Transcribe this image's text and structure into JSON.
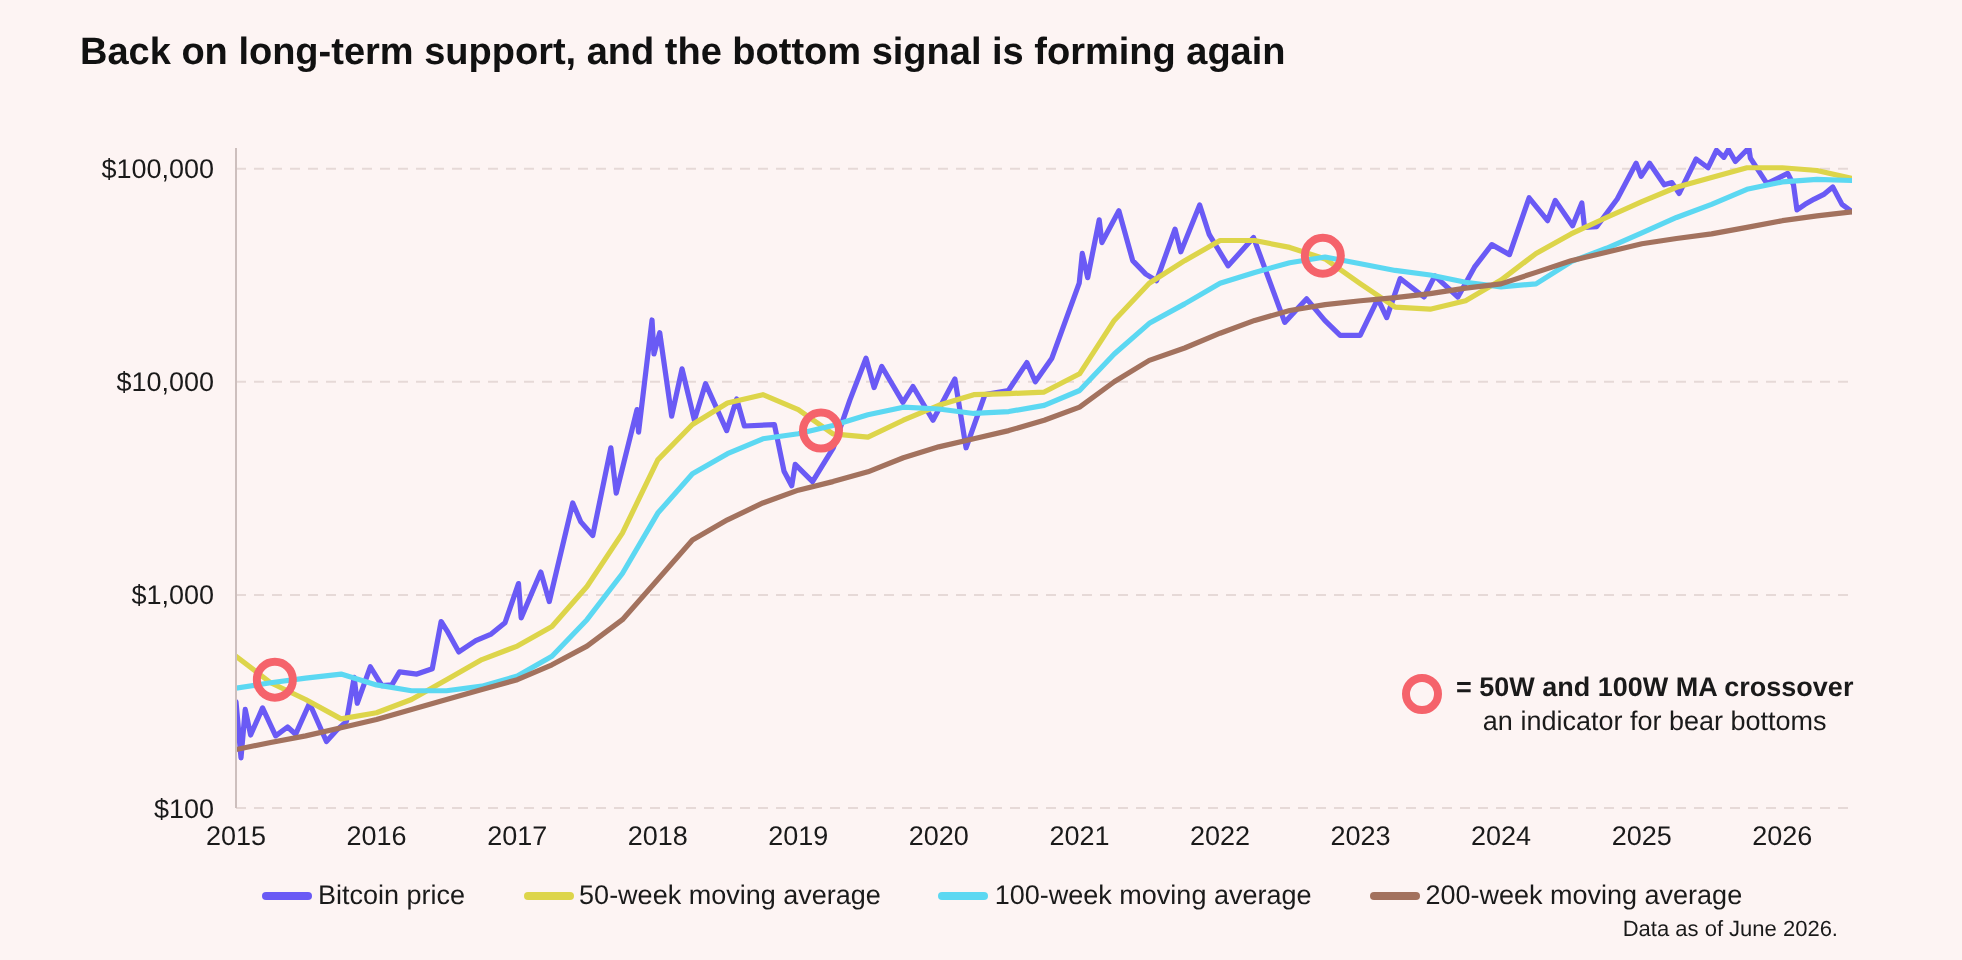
{
  "chart_data": {
    "type": "line",
    "title": "Back on long-term support, and the bottom signal is forming again",
    "annotations": [
      "an indicator for bear bottoms",
      "Data as of June 2026."
    ],
    "x": [
      "2015-01",
      "2015-04",
      "2015-07",
      "2015-10",
      "2016-01",
      "2016-04",
      "2016-07",
      "2016-10",
      "2017-01",
      "2017-04",
      "2017-07",
      "2017-10",
      "2018-01",
      "2018-04",
      "2018-07",
      "2018-10",
      "2019-01",
      "2019-04",
      "2019-07",
      "2019-10",
      "2020-01",
      "2020-04",
      "2020-07",
      "2020-10",
      "2021-01",
      "2021-04",
      "2021-07",
      "2021-10",
      "2022-01",
      "2022-04",
      "2022-07",
      "2022-10",
      "2023-01",
      "2023-04",
      "2023-07",
      "2023-10",
      "2024-01",
      "2024-04",
      "2024-07",
      "2024-10",
      "2025-01",
      "2025-04",
      "2025-07",
      "2025-10",
      "2026-01",
      "2026-04",
      "2026-06-30"
    ],
    "series": [
      {
        "name": "Bitcoin price",
        "color": "#6a5af5",
        "x": [
          "2015-01-01",
          "2015-01-14",
          "2015-01-25",
          "2015-02-08",
          "2015-03-11",
          "2015-04-14",
          "2015-05-15",
          "2015-06-05",
          "2015-07-11",
          "2015-08-24",
          "2015-09-20",
          "2015-10-15",
          "2015-11-04",
          "2015-11-12",
          "2015-12-16",
          "2016-01-15",
          "2016-02-10",
          "2016-03-01",
          "2016-04-15",
          "2016-05-25",
          "2016-06-17",
          "2016-07-02",
          "2016-08-02",
          "2016-09-15",
          "2016-10-25",
          "2016-11-30",
          "2017-01-04",
          "2017-01-11",
          "2017-03-03",
          "2017-03-25",
          "2017-05-25",
          "2017-06-15",
          "2017-07-16",
          "2017-09-01",
          "2017-09-15",
          "2017-11-08",
          "2017-11-12",
          "2017-12-17",
          "2017-12-22",
          "2018-01-06",
          "2018-02-06",
          "2018-03-05",
          "2018-04-06",
          "2018-05-05",
          "2018-06-29",
          "2018-07-25",
          "2018-08-14",
          "2018-10-31",
          "2018-11-25",
          "2018-12-15",
          "2018-12-24",
          "2019-02-07",
          "2019-04-02",
          "2019-05-15",
          "2019-06-26",
          "2019-07-17",
          "2019-08-06",
          "2019-09-30",
          "2019-10-26",
          "2019-12-17",
          "2020-02-12",
          "2020-03-12",
          "2020-04-30",
          "2020-06-30",
          "2020-08-17",
          "2020-09-08",
          "2020-10-21",
          "2020-12-31",
          "2021-01-08",
          "2021-01-22",
          "2021-02-21",
          "2021-02-28",
          "2021-04-13",
          "2021-05-19",
          "2021-06-22",
          "2021-07-20",
          "2021-09-06",
          "2021-09-21",
          "2021-11-09",
          "2021-12-04",
          "2022-01-22",
          "2022-03-29",
          "2022-05-12",
          "2022-06-18",
          "2022-08-14",
          "2022-09-30",
          "2022-11-09",
          "2022-12-31",
          "2023-02-15",
          "2023-03-10",
          "2023-04-14",
          "2023-06-15",
          "2023-07-13",
          "2023-09-11",
          "2023-10-24",
          "2023-12-08",
          "2024-01-23",
          "2024-03-14",
          "2024-05-01",
          "2024-05-21",
          "2024-07-05",
          "2024-07-29",
          "2024-08-05",
          "2024-09-06",
          "2024-10-29",
          "2024-12-17",
          "2024-12-30",
          "2025-01-21",
          "2025-02-28",
          "2025-03-20",
          "2025-04-08",
          "2025-05-22",
          "2025-06-22",
          "2025-07-14",
          "2025-08-02",
          "2025-08-14",
          "2025-09-01",
          "2025-10-06",
          "2025-10-10",
          "2025-11-22",
          "2025-12-20",
          "2026-01-15",
          "2026-01-30",
          "2026-02-08",
          "2026-03-01",
          "2026-03-25",
          "2026-04-20",
          "2026-05-12",
          "2026-06-05",
          "2026-06-30"
        ],
        "values": [
          315,
          172,
          290,
          220,
          295,
          218,
          240,
          222,
          310,
          205,
          232,
          255,
          410,
          310,
          460,
          375,
          378,
          435,
          425,
          450,
          750,
          680,
          540,
          610,
          655,
          740,
          1130,
          780,
          1280,
          930,
          2700,
          2200,
          1900,
          4900,
          3000,
          7400,
          5800,
          19500,
          13500,
          17000,
          6900,
          11500,
          6600,
          9800,
          5900,
          8300,
          6200,
          6300,
          3800,
          3250,
          4100,
          3400,
          4900,
          8200,
          12900,
          9400,
          11800,
          8000,
          9500,
          6600,
          10300,
          4900,
          8700,
          9100,
          12300,
          10000,
          12900,
          29000,
          40000,
          30800,
          57500,
          45000,
          63500,
          37000,
          32000,
          29800,
          52000,
          40700,
          67500,
          49000,
          35000,
          47500,
          28900,
          19000,
          24500,
          19400,
          16500,
          16500,
          24500,
          20000,
          30500,
          25000,
          31400,
          25000,
          34500,
          44000,
          39500,
          73000,
          57000,
          71000,
          54000,
          69000,
          53000,
          53500,
          72000,
          106000,
          92000,
          106000,
          84000,
          86000,
          76500,
          111000,
          101000,
          122000,
          113000,
          123000,
          108000,
          125000,
          112000,
          85000,
          90000,
          95000,
          84000,
          64000,
          68000,
          72000,
          76000,
          82000,
          68000,
          63000
        ]
      },
      {
        "name": "50-week moving average",
        "color": "#ddd54a",
        "values": [
          515,
          387,
          323,
          262,
          280,
          323,
          400,
          497,
          575,
          710,
          1095,
          1950,
          4300,
          6300,
          7950,
          8700,
          7400,
          5700,
          5500,
          6600,
          7750,
          8700,
          8800,
          8950,
          10900,
          19400,
          29000,
          37000,
          46000,
          46000,
          42700,
          37700,
          28800,
          22400,
          21900,
          24000,
          30000,
          40000,
          49400,
          59000,
          70000,
          81800,
          91000,
          101000,
          101000,
          98000,
          90000
        ]
      },
      {
        "name": "100-week moving average",
        "color": "#5cd8f2",
        "values": [
          365,
          387,
          407,
          425,
          378,
          355,
          355,
          373,
          416,
          515,
          765,
          1260,
          2420,
          3700,
          4600,
          5400,
          5700,
          6240,
          7000,
          7600,
          7450,
          7100,
          7250,
          7750,
          9100,
          13500,
          18800,
          23200,
          29000,
          32600,
          36200,
          38500,
          35800,
          33300,
          31700,
          29300,
          27900,
          28800,
          36600,
          42300,
          50000,
          59000,
          68000,
          80000,
          86600,
          89000,
          88000
        ]
      },
      {
        "name": "200-week moving average",
        "color": "#a3725e",
        "values": [
          188,
          203,
          218,
          238,
          260,
          290,
          323,
          360,
          400,
          470,
          575,
          765,
          1180,
          1810,
          2250,
          2700,
          3100,
          3400,
          3780,
          4400,
          4950,
          5400,
          5900,
          6600,
          7600,
          10000,
          12600,
          14400,
          16900,
          19400,
          21600,
          23000,
          24000,
          24800,
          25900,
          27500,
          28800,
          32600,
          37000,
          40500,
          44400,
          47000,
          49400,
          53000,
          57000,
          60000,
          62700
        ]
      },
      {
        "type": "scatter",
        "name": "= 50W and 100W MA crossover",
        "color": "#f5636b",
        "marker": "circle",
        "x": [
          "2015-04-12",
          "2019-03-01",
          "2022-09-25"
        ],
        "values": [
          400,
          5900,
          39000
        ]
      }
    ],
    "xlim": [
      "2015",
      "2026-07"
    ],
    "xticks": [
      "2015",
      "2016",
      "2017",
      "2018",
      "2019",
      "2020",
      "2021",
      "2022",
      "2023",
      "2024",
      "2025",
      "2026"
    ],
    "ylim": [
      100,
      125000
    ],
    "yticks": [
      {
        "value": 100,
        "label": "$100"
      },
      {
        "value": 1000,
        "label": "$1,000"
      },
      {
        "value": 10000,
        "label": "$10,000"
      },
      {
        "value": 100000,
        "label": "$100,000"
      }
    ],
    "log": true,
    "grid": "y",
    "legend": "bottom"
  }
}
